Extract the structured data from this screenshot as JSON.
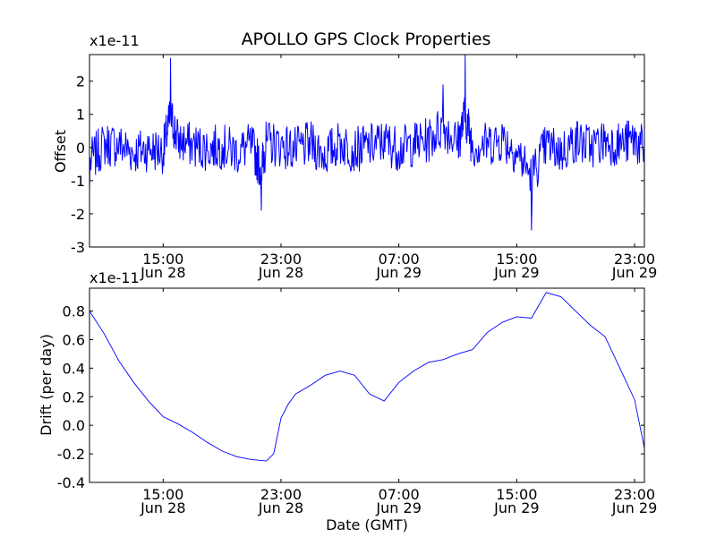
{
  "figure_title": "APOLLO GPS Clock Properties",
  "chart_data": [
    {
      "type": "line",
      "ylabel": "Offset",
      "xlabel": "",
      "y_multiplier_label": "x1e-11",
      "ylim": [
        -3,
        2.8
      ],
      "yticks": [
        "-3",
        "-2",
        "-1",
        "0",
        "1",
        "2"
      ],
      "xlim": [
        "Jun 28 10:00",
        "Jun 29 23:40"
      ],
      "xticks": [
        {
          "time": "15:00",
          "date": "Jun 28"
        },
        {
          "time": "23:00",
          "date": "Jun 28"
        },
        {
          "time": "07:00",
          "date": "Jun 29"
        },
        {
          "time": "15:00",
          "date": "Jun 29"
        },
        {
          "time": "23:00",
          "date": "Jun 29"
        }
      ],
      "series": [
        {
          "color": "#0000ff",
          "x": [
            "Jun 28 10:00",
            "Jun 28 11:00",
            "Jun 28 12:00",
            "Jun 28 13:00",
            "Jun 28 14:00",
            "Jun 28 15:00",
            "Jun 28 15:30",
            "Jun 28 16:00",
            "Jun 28 17:00",
            "Jun 28 18:00",
            "Jun 28 19:00",
            "Jun 28 20:00",
            "Jun 28 21:00",
            "Jun 28 21:40",
            "Jun 28 22:00",
            "Jun 28 23:00",
            "Jun 29 00:00",
            "Jun 29 01:00",
            "Jun 29 02:00",
            "Jun 29 03:00",
            "Jun 29 04:00",
            "Jun 29 05:00",
            "Jun 29 06:00",
            "Jun 29 07:00",
            "Jun 29 08:00",
            "Jun 29 09:00",
            "Jun 29 10:00",
            "Jun 29 11:00",
            "Jun 29 11:30",
            "Jun 29 12:00",
            "Jun 29 13:00",
            "Jun 29 14:00",
            "Jun 29 15:00",
            "Jun 29 16:00",
            "Jun 29 17:00",
            "Jun 29 18:00",
            "Jun 29 19:00",
            "Jun 29 20:00",
            "Jun 29 21:00",
            "Jun 29 22:00",
            "Jun 29 23:00",
            "Jun 29 23:40"
          ],
          "y": [
            -1.3,
            0.3,
            0.2,
            -0.4,
            -0.1,
            -0.3,
            2.7,
            0.6,
            0.2,
            -0.1,
            0.1,
            -0.4,
            0.2,
            -1.9,
            0.4,
            0.2,
            -0.2,
            0.3,
            -0.6,
            0.4,
            -0.2,
            0.1,
            0.5,
            -0.1,
            0.3,
            0.6,
            1.9,
            0.4,
            2.8,
            0.2,
            0.3,
            0.7,
            -0.3,
            -2.5,
            0.2,
            -0.4,
            0.6,
            0.1,
            0.5,
            0.3,
            0.6,
            -0.2
          ]
        }
      ]
    },
    {
      "type": "line",
      "ylabel": "Drift (per day)",
      "xlabel": "Date (GMT)",
      "y_multiplier_label": "x1e-11",
      "ylim": [
        -0.4,
        0.96
      ],
      "yticks": [
        "-0.4",
        "-0.2",
        "0.0",
        "0.2",
        "0.4",
        "0.6",
        "0.8"
      ],
      "xlim": [
        "Jun 28 10:00",
        "Jun 29 23:40"
      ],
      "xticks": [
        {
          "time": "15:00",
          "date": "Jun 28"
        },
        {
          "time": "23:00",
          "date": "Jun 28"
        },
        {
          "time": "07:00",
          "date": "Jun 29"
        },
        {
          "time": "15:00",
          "date": "Jun 29"
        },
        {
          "time": "23:00",
          "date": "Jun 29"
        }
      ],
      "series": [
        {
          "color": "#0000ff",
          "x": [
            "Jun 28 10:00",
            "Jun 28 11:00",
            "Jun 28 12:00",
            "Jun 28 13:00",
            "Jun 28 14:00",
            "Jun 28 15:00",
            "Jun 28 16:00",
            "Jun 28 17:00",
            "Jun 28 18:00",
            "Jun 28 19:00",
            "Jun 28 20:00",
            "Jun 28 21:00",
            "Jun 28 22:00",
            "Jun 28 22:30",
            "Jun 28 23:00",
            "Jun 28 23:30",
            "Jun 29 00:00",
            "Jun 29 01:00",
            "Jun 29 02:00",
            "Jun 29 03:00",
            "Jun 29 04:00",
            "Jun 29 05:00",
            "Jun 29 06:00",
            "Jun 29 07:00",
            "Jun 29 08:00",
            "Jun 29 09:00",
            "Jun 29 10:00",
            "Jun 29 11:00",
            "Jun 29 12:00",
            "Jun 29 13:00",
            "Jun 29 14:00",
            "Jun 29 15:00",
            "Jun 29 16:00",
            "Jun 29 17:00",
            "Jun 29 18:00",
            "Jun 29 19:00",
            "Jun 29 20:00",
            "Jun 29 21:00",
            "Jun 29 22:00",
            "Jun 29 23:00",
            "Jun 29 23:40"
          ],
          "y": [
            0.8,
            0.64,
            0.45,
            0.3,
            0.17,
            0.06,
            0.01,
            -0.05,
            -0.12,
            -0.18,
            -0.22,
            -0.24,
            -0.25,
            -0.2,
            0.05,
            0.15,
            0.22,
            0.28,
            0.35,
            0.38,
            0.35,
            0.22,
            0.17,
            0.3,
            0.38,
            0.44,
            0.46,
            0.5,
            0.53,
            0.65,
            0.72,
            0.76,
            0.75,
            0.93,
            0.9,
            0.8,
            0.7,
            0.62,
            0.4,
            0.18,
            -0.16
          ]
        }
      ]
    }
  ]
}
